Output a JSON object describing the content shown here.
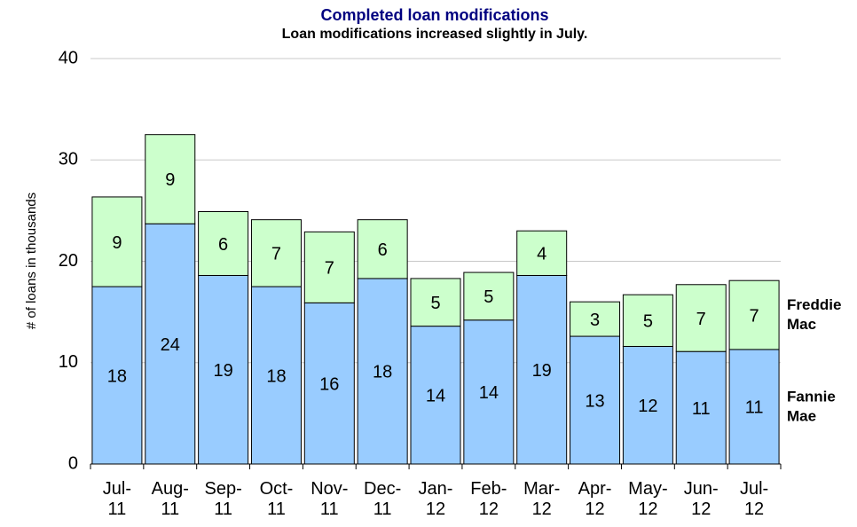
{
  "chart_data": {
    "type": "stacked_bar",
    "title": "Completed loan modifications",
    "subtitle": "Loan modifications increased slightly in July.",
    "y_label": "# of loans in thousands",
    "categories": [
      "Jul-\n11",
      "Aug-\n11",
      "Sep-\n11",
      "Oct-\n11",
      "Nov-\n11",
      "Dec-\n11",
      "Jan-\n12",
      "Feb-\n12",
      "Mar-\n12",
      "Apr-\n12",
      "May-\n12",
      "Jun-\n12",
      "Jul-\n12"
    ],
    "series": [
      {
        "name": "Fannie\nMae",
        "color": "#99ccff",
        "values": [
          17.5,
          23.7,
          18.6,
          17.5,
          15.9,
          18.3,
          13.6,
          14.2,
          18.6,
          12.6,
          11.6,
          11.1,
          11.3
        ],
        "value_labels": [
          "18",
          "24",
          "19",
          "18",
          "16",
          "18",
          "14",
          "14",
          "19",
          "13",
          "12",
          "11",
          "11"
        ]
      },
      {
        "name": "Freddie\nMac",
        "color": "#ccffcc",
        "values": [
          8.85,
          8.8,
          6.3,
          6.6,
          7.0,
          5.8,
          4.7,
          4.7,
          4.4,
          3.4,
          5.1,
          6.6,
          6.8
        ],
        "value_labels": [
          "9",
          "9",
          "6",
          "7",
          "7",
          "6",
          "5",
          "5",
          "4",
          "3",
          "5",
          "7",
          "7"
        ]
      }
    ],
    "ylim": [
      0,
      40
    ],
    "yticks": [
      0,
      10,
      20,
      30,
      40
    ],
    "grid": true
  }
}
